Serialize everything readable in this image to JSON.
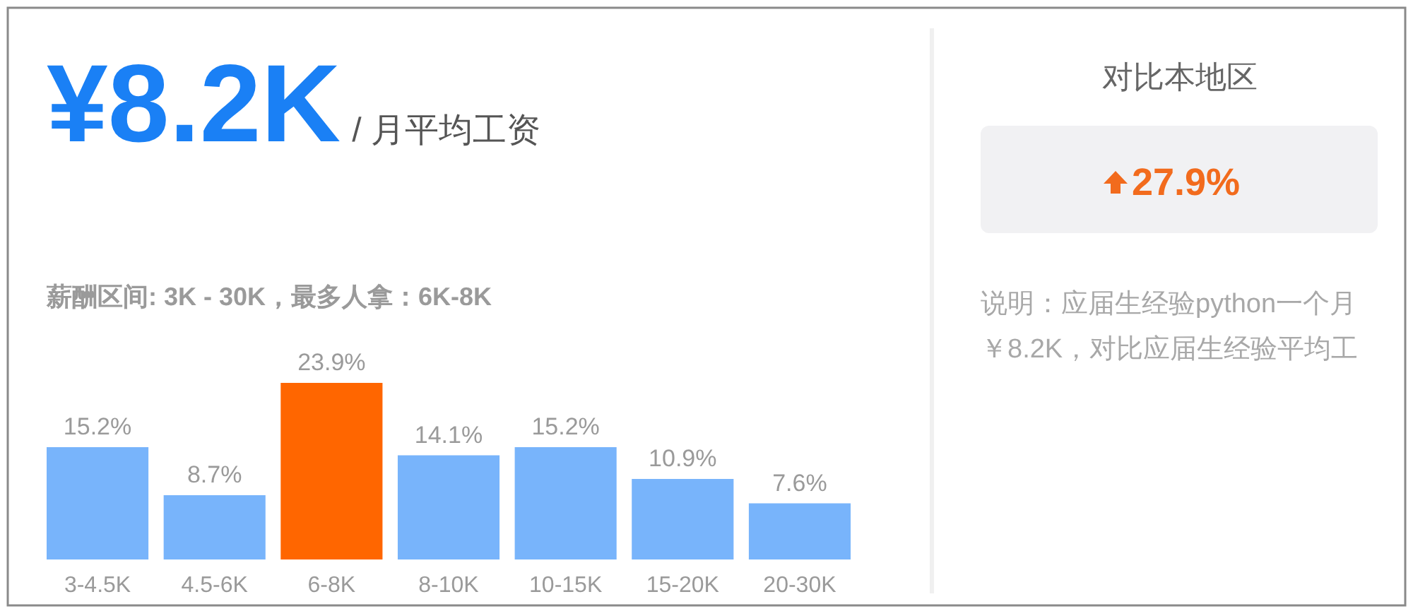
{
  "chart_data": [
    {
      "type": "bar",
      "title": "¥8.2K",
      "subtitle": "薪酬区间: 3K - 30K，最多人拿：6K-8K",
      "annotations": [
        "/ 月平均工资"
      ],
      "categories": [
        "3-4.5K",
        "4.5-6K",
        "6-8K",
        "8-10K",
        "10-15K",
        "15-20K",
        "20-30K"
      ],
      "values": [
        15.2,
        8.7,
        23.9,
        14.1,
        15.2,
        10.9,
        7.6
      ],
      "colors": [
        "#78b4fb",
        "#78b4fb",
        "#ff6600",
        "#78b4fb",
        "#78b4fb",
        "#78b4fb",
        "#78b4fb"
      ],
      "value_labels": [
        "15.2%",
        "8.7%",
        "23.9%",
        "14.1%",
        "15.2%",
        "10.9%",
        "7.6%"
      ]
    },
    {
      "type": "other",
      "title": "对比本地区",
      "annotations": [
        "27.9%",
        "说明：应届生经验python一个月",
        "￥8.2K，对比应届生经验平均工"
      ]
    }
  ]
}
